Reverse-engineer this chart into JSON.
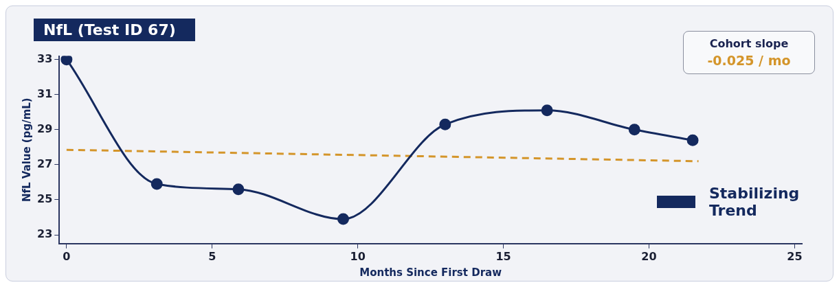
{
  "chart_data": {
    "type": "line",
    "title": "NfL (Test ID 67)",
    "xlabel": "Months Since First Draw",
    "ylabel": "NfL Value (pg/mL)",
    "xlim": [
      -0.25,
      25.25
    ],
    "xticks": [
      0,
      5,
      10,
      15,
      20,
      25
    ],
    "ylim": [
      22.5,
      33.2
    ],
    "yticks": [
      23,
      25,
      27,
      29,
      31,
      33
    ],
    "series": [
      {
        "name": "Stabilizing Trend",
        "color": "#14295e",
        "x": [
          0,
          3.1,
          5.9,
          9.5,
          13,
          16.5,
          19.5,
          21.5
        ],
        "values": [
          33,
          25.9,
          25.6,
          23.9,
          29.3,
          30.1,
          29,
          28.4
        ],
        "line_style": "solid"
      },
      {
        "color": "#d4952a",
        "x": [
          0,
          21.7
        ],
        "values": [
          27.85,
          27.2
        ],
        "marker": "none",
        "line_style": "dashed"
      }
    ],
    "annotations": [
      "Cohort slope",
      "-0.025 / mo"
    ],
    "legend": "right",
    "marker": "circle"
  }
}
